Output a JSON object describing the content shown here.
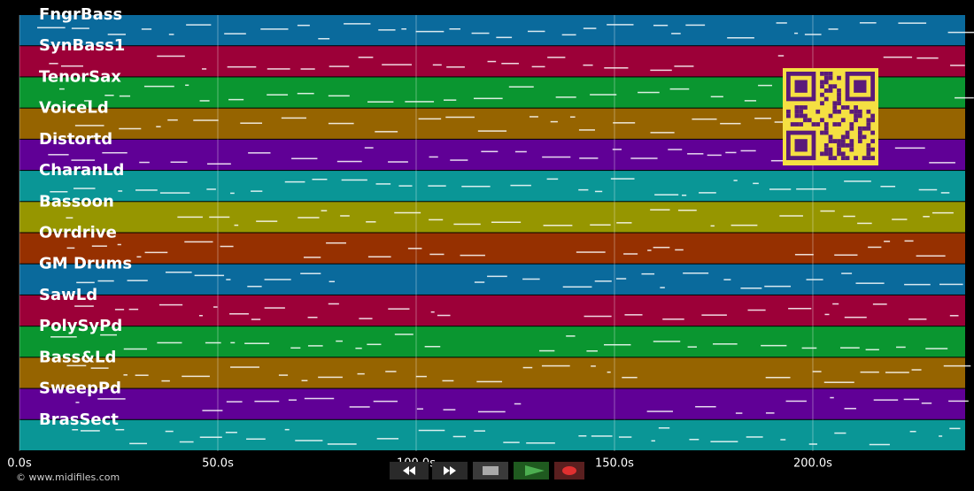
{
  "chart_data": {
    "type": "pianoroll",
    "tracks": [
      {
        "name": "FngrBass",
        "color": "#0a6a9c"
      },
      {
        "name": "SynBass1",
        "color": "#9c0038"
      },
      {
        "name": "TenorSax",
        "color": "#0a9630"
      },
      {
        "name": "VoiceLd",
        "color": "#966400"
      },
      {
        "name": "Distortd",
        "color": "#600096"
      },
      {
        "name": "CharanLd",
        "color": "#0a9696"
      },
      {
        "name": "Bassoon",
        "color": "#969600"
      },
      {
        "name": "Ovrdrive",
        "color": "#963000"
      },
      {
        "name": "GM Drums",
        "color": "#0a6a9c"
      },
      {
        "name": "SawLd",
        "color": "#9c0038"
      },
      {
        "name": "PolySyPd",
        "color": "#0a9630"
      },
      {
        "name": "Bass&Ld",
        "color": "#966400"
      },
      {
        "name": "SweepPd",
        "color": "#600096"
      },
      {
        "name": "BrasSect",
        "color": "#0a9696"
      }
    ],
    "xlim": [
      0,
      238.4
    ],
    "xticks": [
      {
        "value": 0,
        "label": "0.0s"
      },
      {
        "value": 50,
        "label": "50.0s"
      },
      {
        "value": 100,
        "label": "100.0s"
      },
      {
        "value": 150,
        "label": "150.0s"
      },
      {
        "value": 200,
        "label": "200.0s"
      }
    ],
    "grid": true
  },
  "footer": {
    "copyright": "© www.midifiles.com"
  }
}
